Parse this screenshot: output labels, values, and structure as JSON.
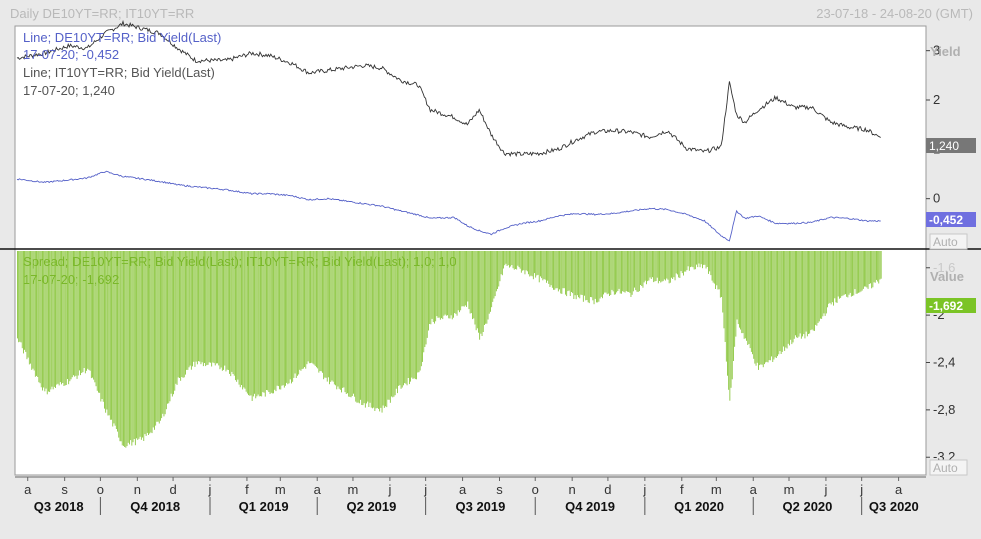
{
  "header": {
    "title": "Daily DE10YT=RR; IT10YT=RR",
    "date_range": "23-07-18 - 24-08-20 (GMT)"
  },
  "colors": {
    "it_line": "#333333",
    "de_line": "#5561c8",
    "spread_bars": "#8cc63f",
    "spread_text": "#7ab82a",
    "it_badge": "#777777",
    "de_badge": "#6f6fe0",
    "spread_badge": "#7bc426",
    "axis_text": "#333333",
    "axis_title": "#b0b0b0"
  },
  "chart_data": [
    {
      "type": "line",
      "ylabel": "Yield",
      "y_ticks": [
        0,
        1,
        2,
        3
      ],
      "ylim": [
        -1.0,
        3.5
      ],
      "scale_mode": "Auto",
      "grid": false,
      "legend": [
        {
          "name": "Line; DE10YT=RR; Bid Yield(Last)",
          "value_text": "17-07-20; -0,452"
        },
        {
          "name": "Line; IT10YT=RR; Bid Yield(Last)",
          "value_text": "17-07-20; 1,240"
        }
      ],
      "last_value_badges": {
        "it": "1,240",
        "de": "-0,452"
      },
      "x": [
        "2018-07-23",
        "2018-08-15",
        "2018-09-05",
        "2018-09-20",
        "2018-10-05",
        "2018-10-20",
        "2018-11-05",
        "2018-11-20",
        "2018-12-05",
        "2018-12-20",
        "2019-01-15",
        "2019-02-05",
        "2019-02-20",
        "2019-03-10",
        "2019-03-25",
        "2019-04-10",
        "2019-04-25",
        "2019-05-10",
        "2019-05-25",
        "2019-06-10",
        "2019-06-25",
        "2019-07-05",
        "2019-07-25",
        "2019-08-05",
        "2019-08-15",
        "2019-08-25",
        "2019-09-05",
        "2019-09-20",
        "2019-10-05",
        "2019-10-20",
        "2019-11-05",
        "2019-11-20",
        "2019-12-05",
        "2019-12-20",
        "2020-01-05",
        "2020-01-20",
        "2020-02-05",
        "2020-02-20",
        "2020-03-05",
        "2020-03-12",
        "2020-03-18",
        "2020-03-25",
        "2020-04-05",
        "2020-04-20",
        "2020-05-05",
        "2020-05-20",
        "2020-06-05",
        "2020-06-20",
        "2020-07-05",
        "2020-07-17"
      ],
      "series": [
        {
          "name": "IT10YT=RR",
          "values": [
            2.85,
            2.95,
            3.1,
            3.05,
            3.35,
            3.55,
            3.45,
            3.35,
            3.05,
            2.8,
            2.8,
            2.95,
            2.9,
            2.75,
            2.55,
            2.6,
            2.65,
            2.7,
            2.65,
            2.4,
            2.3,
            1.8,
            1.65,
            1.5,
            1.8,
            1.3,
            0.92,
            0.9,
            0.92,
            1.0,
            1.2,
            1.35,
            1.38,
            1.35,
            1.25,
            1.38,
            1.02,
            0.95,
            1.05,
            2.35,
            1.7,
            1.55,
            1.8,
            2.05,
            1.85,
            1.85,
            1.55,
            1.45,
            1.4,
            1.24
          ]
        },
        {
          "name": "DE10YT=RR",
          "values": [
            0.4,
            0.33,
            0.38,
            0.42,
            0.55,
            0.45,
            0.4,
            0.35,
            0.28,
            0.24,
            0.18,
            0.1,
            0.1,
            0.06,
            -0.02,
            0.0,
            -0.05,
            -0.1,
            -0.15,
            -0.25,
            -0.33,
            -0.4,
            -0.38,
            -0.55,
            -0.65,
            -0.72,
            -0.6,
            -0.5,
            -0.45,
            -0.35,
            -0.3,
            -0.32,
            -0.3,
            -0.25,
            -0.2,
            -0.22,
            -0.32,
            -0.45,
            -0.75,
            -0.85,
            -0.25,
            -0.4,
            -0.35,
            -0.5,
            -0.5,
            -0.48,
            -0.38,
            -0.4,
            -0.45,
            -0.452
          ]
        }
      ]
    },
    {
      "type": "bar",
      "ylabel": "Value",
      "y_ticks": [
        -1.6,
        -2,
        -2.4,
        -2.8,
        -3.2
      ],
      "y_tick_labels": [
        "-1,6",
        "-2",
        "-2,4",
        "-2,8",
        "-3,2"
      ],
      "ylim": [
        -3.35,
        -1.45
      ],
      "scale_mode": "Auto",
      "legend": [
        {
          "name": "Spread; DE10YT=RR; Bid Yield(Last); IT10YT=RR; Bid Yield(Last);  1,0; 1,0",
          "value_text": "17-07-20; -1,692"
        }
      ],
      "last_value_badge": "-1,692",
      "x": [
        "2018-07-23",
        "2018-08-15",
        "2018-09-05",
        "2018-09-20",
        "2018-10-05",
        "2018-10-20",
        "2018-11-05",
        "2018-11-20",
        "2018-12-05",
        "2018-12-20",
        "2019-01-15",
        "2019-02-05",
        "2019-02-20",
        "2019-03-10",
        "2019-03-25",
        "2019-04-10",
        "2019-04-25",
        "2019-05-10",
        "2019-05-25",
        "2019-06-10",
        "2019-06-25",
        "2019-07-05",
        "2019-07-25",
        "2019-08-05",
        "2019-08-15",
        "2019-08-25",
        "2019-09-05",
        "2019-09-20",
        "2019-10-05",
        "2019-10-20",
        "2019-11-05",
        "2019-11-20",
        "2019-12-05",
        "2019-12-20",
        "2020-01-05",
        "2020-01-20",
        "2020-02-05",
        "2020-02-20",
        "2020-03-05",
        "2020-03-12",
        "2020-03-18",
        "2020-03-25",
        "2020-04-05",
        "2020-04-20",
        "2020-05-05",
        "2020-05-20",
        "2020-06-05",
        "2020-06-20",
        "2020-07-05",
        "2020-07-17"
      ],
      "values": [
        -2.2,
        -2.65,
        -2.55,
        -2.45,
        -2.8,
        -3.1,
        -3.05,
        -2.9,
        -2.55,
        -2.4,
        -2.45,
        -2.7,
        -2.65,
        -2.55,
        -2.4,
        -2.55,
        -2.65,
        -2.75,
        -2.8,
        -2.6,
        -2.5,
        -2.05,
        -2.0,
        -1.9,
        -2.2,
        -1.95,
        -1.58,
        -1.62,
        -1.7,
        -1.78,
        -1.85,
        -1.88,
        -1.8,
        -1.82,
        -1.7,
        -1.72,
        -1.62,
        -1.58,
        -1.85,
        -2.75,
        -2.05,
        -2.2,
        -2.45,
        -2.35,
        -2.2,
        -2.15,
        -1.9,
        -1.82,
        -1.78,
        -1.692
      ]
    }
  ],
  "x_axis": {
    "month_ticks": [
      {
        "label": "a",
        "date": "2018-08-01"
      },
      {
        "label": "s",
        "date": "2018-09-01"
      },
      {
        "label": "o",
        "date": "2018-10-01"
      },
      {
        "label": "n",
        "date": "2018-11-01"
      },
      {
        "label": "d",
        "date": "2018-12-01"
      },
      {
        "label": "j",
        "date": "2019-01-01"
      },
      {
        "label": "f",
        "date": "2019-02-01"
      },
      {
        "label": "m",
        "date": "2019-03-01"
      },
      {
        "label": "a",
        "date": "2019-04-01"
      },
      {
        "label": "m",
        "date": "2019-05-01"
      },
      {
        "label": "j",
        "date": "2019-06-01"
      },
      {
        "label": "j",
        "date": "2019-07-01"
      },
      {
        "label": "a",
        "date": "2019-08-01"
      },
      {
        "label": "s",
        "date": "2019-09-01"
      },
      {
        "label": "o",
        "date": "2019-10-01"
      },
      {
        "label": "n",
        "date": "2019-11-01"
      },
      {
        "label": "d",
        "date": "2019-12-01"
      },
      {
        "label": "j",
        "date": "2020-01-01"
      },
      {
        "label": "f",
        "date": "2020-02-01"
      },
      {
        "label": "m",
        "date": "2020-03-01"
      },
      {
        "label": "a",
        "date": "2020-04-01"
      },
      {
        "label": "m",
        "date": "2020-05-01"
      },
      {
        "label": "j",
        "date": "2020-06-01"
      },
      {
        "label": "j",
        "date": "2020-07-01"
      },
      {
        "label": "a",
        "date": "2020-08-01"
      }
    ],
    "quarters": [
      {
        "label": "Q3 2018",
        "start": "2018-07-23",
        "end": "2018-10-01"
      },
      {
        "label": "Q4 2018",
        "start": "2018-10-01",
        "end": "2019-01-01"
      },
      {
        "label": "Q1 2019",
        "start": "2019-01-01",
        "end": "2019-04-01"
      },
      {
        "label": "Q2 2019",
        "start": "2019-04-01",
        "end": "2019-07-01"
      },
      {
        "label": "Q3 2019",
        "start": "2019-07-01",
        "end": "2019-10-01"
      },
      {
        "label": "Q4 2019",
        "start": "2019-10-01",
        "end": "2020-01-01"
      },
      {
        "label": "Q1 2020",
        "start": "2020-01-01",
        "end": "2020-04-01"
      },
      {
        "label": "Q2 2020",
        "start": "2020-04-01",
        "end": "2020-07-01"
      },
      {
        "label": "Q3 2020",
        "start": "2020-07-01",
        "end": "2020-08-24"
      }
    ]
  }
}
